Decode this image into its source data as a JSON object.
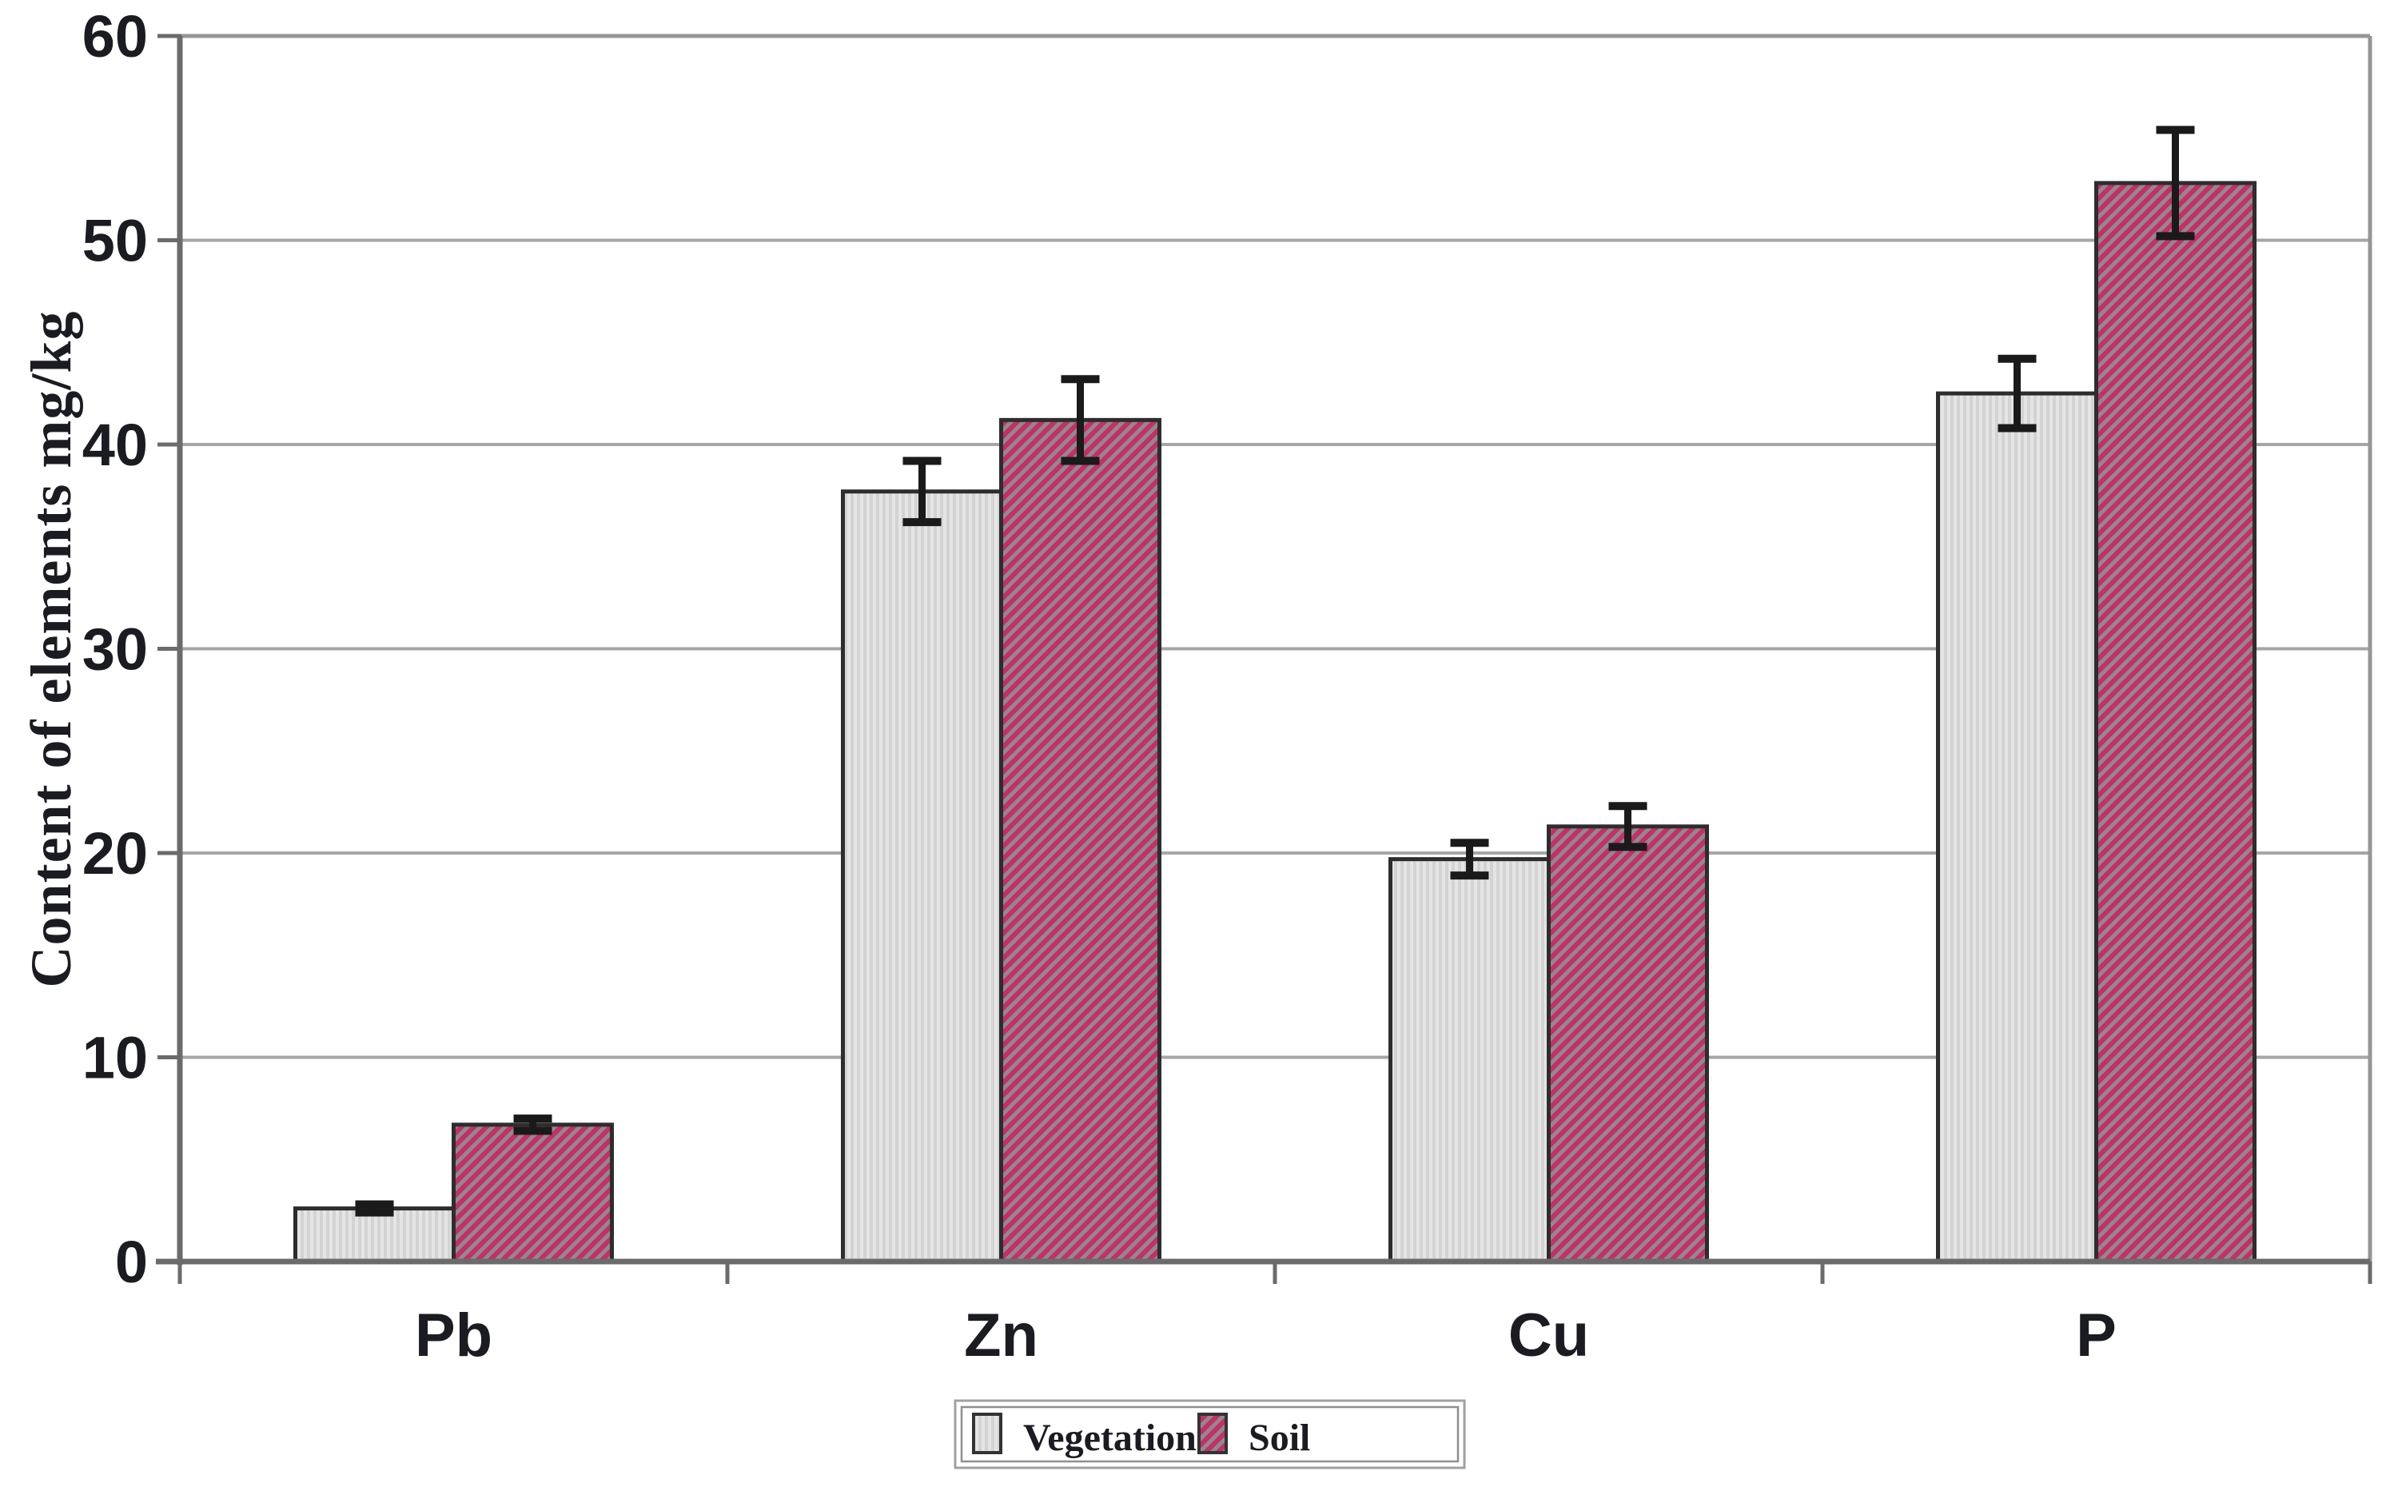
{
  "chart_data": {
    "type": "bar",
    "title": "",
    "xlabel": "",
    "ylabel": "Content of elements mg/kg",
    "categories": [
      "Pb",
      "Zn",
      "Cu",
      "P"
    ],
    "series": [
      {
        "name": "Vegetation",
        "values": [
          2.6,
          37.7,
          19.7,
          42.5
        ],
        "errors": [
          0.2,
          1.5,
          0.8,
          1.7
        ],
        "pattern": "vertical-stripes"
      },
      {
        "name": "Soil",
        "values": [
          6.7,
          41.2,
          21.3,
          52.8
        ],
        "errors": [
          0.3,
          2.0,
          1.0,
          2.6
        ],
        "pattern": "diagonal-stripes"
      }
    ],
    "ylim": [
      0,
      60
    ],
    "ytick_step": 10,
    "yticks": [
      0,
      10,
      20,
      30,
      40,
      50,
      60
    ],
    "grid": true,
    "legend": {
      "labels": [
        "Vegetation",
        "Soil"
      ],
      "position": "bottom-center"
    },
    "colors": {
      "vegetation_fill": "#d3d3d3",
      "vegetation_stripe": "#e5e5e5",
      "soil_fill": "#c62e67",
      "soil_stripe": "#90898e",
      "bar_border": "#2d2d2d",
      "gridline": "#a6a6a6",
      "axis": "#6b6b6b",
      "plot_border": "#969696",
      "error_bar": "#1a1a1a",
      "text": "#1b1b22",
      "legend_border": "#a0a0a0"
    }
  }
}
